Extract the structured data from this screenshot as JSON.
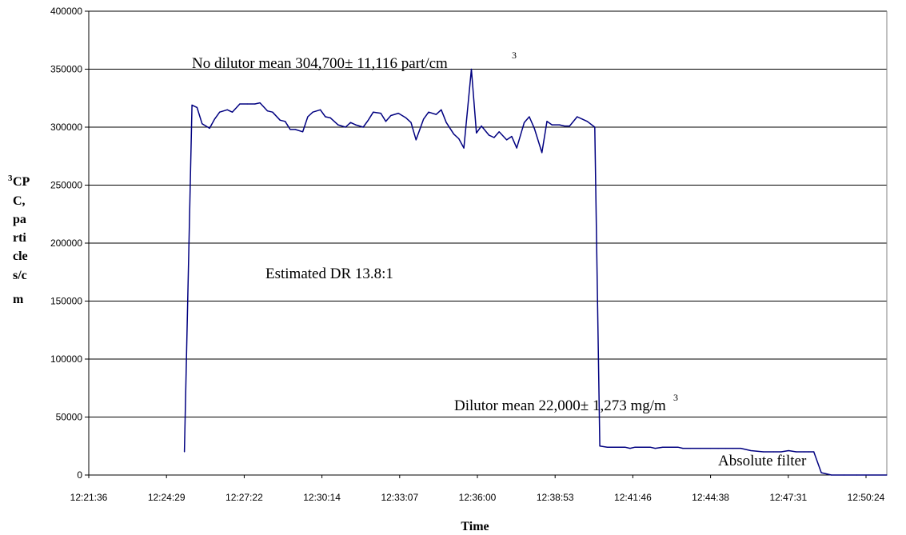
{
  "chart_data": {
    "type": "line",
    "title": "",
    "xlabel": "Time",
    "ylabel_lines": [
      "CP",
      "C,",
      "pa",
      "rti",
      "cle",
      "s/c",
      "m"
    ],
    "ylabel_superscript": "3",
    "ylim": [
      0,
      400000
    ],
    "yticks": [
      "0",
      "50000",
      "100000",
      "150000",
      "200000",
      "250000",
      "300000",
      "350000",
      "400000"
    ],
    "xticks": [
      "12:21:36",
      "12:24:29",
      "12:27:22",
      "12:30:14",
      "12:33:07",
      "12:36:00",
      "12:38:53",
      "12:41:46",
      "12:44:38",
      "12:47:31",
      "12:50:24"
    ],
    "xlim_minutes": [
      0,
      31.7
    ],
    "grid": "horizontal",
    "colors": {
      "series": "#000080",
      "grid": "#000000"
    },
    "series": [
      {
        "x_minutes": [
          3.8,
          4.1,
          4.3,
          4.5,
          4.8,
          5.0,
          5.2,
          5.5,
          5.7,
          6.0,
          6.3,
          6.6,
          6.8,
          7.1,
          7.3,
          7.6,
          7.8,
          8.0,
          8.2,
          8.5,
          8.7,
          8.9,
          9.2,
          9.4,
          9.6,
          9.9,
          10.2,
          10.4,
          10.6,
          10.9,
          11.1,
          11.3,
          11.6,
          11.8,
          12.0,
          12.3,
          12.6,
          12.8,
          13.0,
          13.3,
          13.5,
          13.8,
          14.0,
          14.2,
          14.5,
          14.7,
          14.9,
          15.2,
          15.4,
          15.6,
          15.9,
          16.1,
          16.3,
          16.6,
          16.8,
          17.0,
          17.3,
          17.5,
          17.7,
          18.0,
          18.2,
          18.4,
          18.7,
          18.9,
          19.1,
          19.4,
          19.6,
          19.8,
          20.1,
          20.3,
          20.6,
          20.8,
          21.0,
          21.3,
          21.5,
          21.7,
          22.0,
          22.3,
          22.5,
          22.8,
          23.1,
          23.4,
          23.6,
          23.9,
          24.3,
          24.7,
          25.0,
          25.3,
          25.6,
          25.9,
          26.3,
          26.8,
          27.2,
          27.5,
          27.8,
          28.1,
          28.4,
          28.6,
          28.8,
          29.1,
          29.5,
          30.0,
          30.5,
          31.0,
          31.7
        ],
        "values": [
          20000,
          319000,
          317000,
          303000,
          299000,
          307000,
          313000,
          315000,
          313000,
          320000,
          320000,
          320000,
          321000,
          314000,
          313000,
          306000,
          305000,
          298000,
          298000,
          296000,
          309000,
          313000,
          315000,
          309000,
          308000,
          302000,
          300000,
          304000,
          302000,
          300000,
          306000,
          313000,
          312000,
          305000,
          310000,
          312000,
          308000,
          304000,
          289000,
          307000,
          313000,
          311000,
          315000,
          304000,
          294000,
          290000,
          282000,
          350000,
          295000,
          301000,
          293000,
          291000,
          296000,
          289000,
          292000,
          282000,
          304000,
          309000,
          299000,
          278000,
          305000,
          302000,
          302000,
          301000,
          301000,
          309000,
          307000,
          305000,
          300000,
          25000,
          24000,
          24000,
          24000,
          24000,
          23000,
          24000,
          24000,
          24000,
          23000,
          24000,
          24000,
          24000,
          23000,
          23000,
          23000,
          23000,
          23000,
          23000,
          23000,
          23000,
          21000,
          20000,
          20000,
          20000,
          21000,
          20000,
          20000,
          20000,
          20000,
          2000,
          0,
          0,
          0,
          0,
          0
        ]
      }
    ],
    "annotations": {
      "no_dilutor": {
        "text": "No dilutor mean 304,700± 11,116 part/cm",
        "sup": "3"
      },
      "estimated_dr": {
        "text": "Estimated DR 13.8:1"
      },
      "dilutor": {
        "text": "Dilutor mean 22,000± 1,273 mg/m",
        "sup": "3"
      },
      "absolute_filter": {
        "text": "Absolute filter"
      }
    }
  }
}
